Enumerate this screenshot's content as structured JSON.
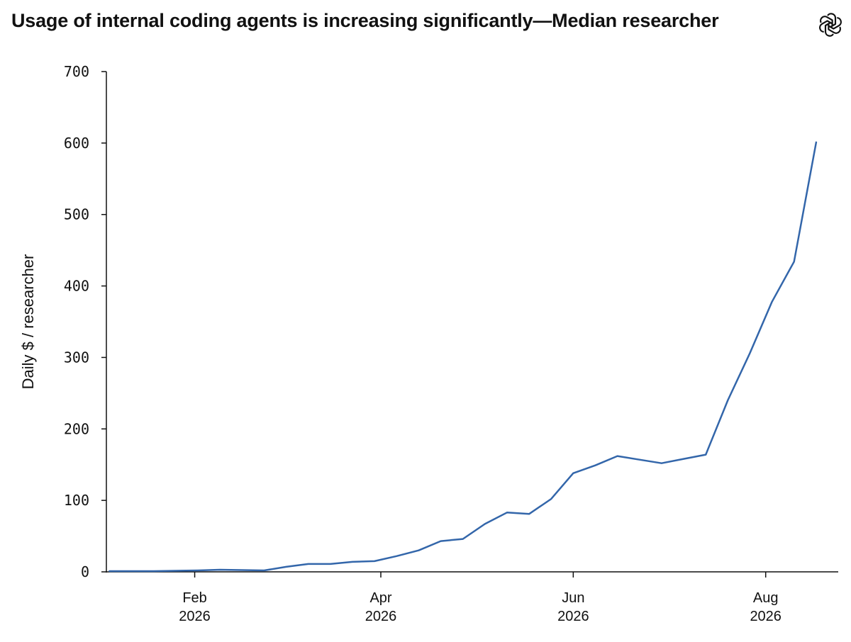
{
  "chart_data": {
    "type": "line",
    "title": "Usage of internal coding agents is increasing significantly—Median researcher",
    "xlabel": "",
    "ylabel": "Daily $ / researcher",
    "ylim": [
      0,
      700
    ],
    "yticks": [
      0,
      100,
      200,
      300,
      400,
      500,
      600,
      700
    ],
    "xlim": [
      "2026-01-04",
      "2026-08-24"
    ],
    "xticks": [
      {
        "date": "2026-02-01",
        "label": [
          "Feb",
          "2026"
        ]
      },
      {
        "date": "2026-04-01",
        "label": [
          "Apr",
          "2026"
        ]
      },
      {
        "date": "2026-06-01",
        "label": [
          "Jun",
          "2026"
        ]
      },
      {
        "date": "2026-08-01",
        "label": [
          "Aug",
          "2026"
        ]
      }
    ],
    "grid": false,
    "series": [
      {
        "color": "#3366aa",
        "x": [
          "2026-01-05",
          "2026-01-12",
          "2026-01-19",
          "2026-01-26",
          "2026-02-02",
          "2026-02-09",
          "2026-02-16",
          "2026-02-23",
          "2026-03-02",
          "2026-03-09",
          "2026-03-16",
          "2026-03-23",
          "2026-03-30",
          "2026-04-06",
          "2026-04-13",
          "2026-04-20",
          "2026-04-27",
          "2026-05-04",
          "2026-05-11",
          "2026-05-18",
          "2026-05-25",
          "2026-06-01",
          "2026-06-08",
          "2026-06-15",
          "2026-06-22",
          "2026-06-29",
          "2026-07-06",
          "2026-07-13",
          "2026-07-20",
          "2026-07-27",
          "2026-08-03",
          "2026-08-10",
          "2026-08-17"
        ],
        "values": [
          1,
          1,
          1,
          1.5,
          2,
          3,
          2.5,
          2,
          7,
          11,
          11,
          14,
          15,
          22,
          30,
          43,
          46,
          67,
          83,
          81,
          102,
          138,
          149,
          162,
          157,
          152,
          158,
          164,
          240,
          306,
          378,
          434,
          601
        ]
      }
    ]
  },
  "logo": {
    "icon": "openai-logo-icon"
  }
}
